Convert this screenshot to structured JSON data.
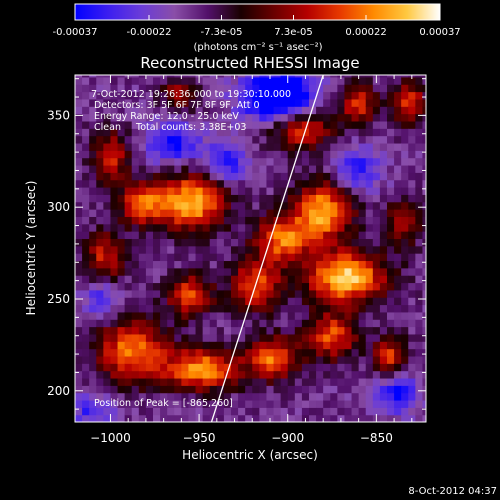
{
  "colorbar": {
    "vmin": -0.00037,
    "vmax": 0.00037,
    "tick_values": [
      -0.00037,
      -0.00022,
      -7.3e-05,
      7.3e-05,
      0.00022,
      0.00037
    ],
    "tick_labels": [
      "-0.00037",
      "-0.00022",
      "-7.3e-05",
      "7.3e-05",
      "0.00022",
      "0.00037"
    ],
    "unit_label": "(photons cm⁻² s⁻¹ asec⁻²)",
    "colormap": [
      "#0000ff",
      "#3c1ef0",
      "#6a3cd8",
      "#8a4ea8",
      "#52106a",
      "#1a0000",
      "#6a0000",
      "#b50000",
      "#e83a00",
      "#ff8a00",
      "#ffc840",
      "#ffffff"
    ]
  },
  "chart_data": {
    "type": "heatmap",
    "title": "Reconstructed RHESSI Image",
    "xlabel": "Heliocentric X (arcsec)",
    "ylabel": "Heliocentric Y (arcsec)",
    "xlim": [
      -1020,
      -822
    ],
    "ylim": [
      183,
      372
    ],
    "xticks": [
      -1000,
      -950,
      -900,
      -850
    ],
    "yticks": [
      200,
      250,
      300,
      350
    ],
    "grid": false,
    "annotations": [
      "7-Oct-2012 19:26:36.000 to 19:30:10.000",
      "Detectors: 3F 5F 6F 7F 8F 9F, Att 0",
      "Energy Range: 12.0 - 25.0 keV",
      "Clean     Total counts: 3.38E+03"
    ],
    "peak_label": "Position of Peak = [-865,260]",
    "peak": {
      "x": -865,
      "y": 260
    },
    "limb_line": [
      {
        "x": -943,
        "y": 183
      },
      {
        "x": -880,
        "y": 372
      }
    ],
    "bright_sources": [
      {
        "x": -955,
        "y": 303,
        "sx": 14,
        "sy": 11,
        "amp": 1.0
      },
      {
        "x": -983,
        "y": 302,
        "sx": 9,
        "sy": 8,
        "amp": 0.7
      },
      {
        "x": -880,
        "y": 298,
        "sx": 12,
        "sy": 11,
        "amp": 0.95
      },
      {
        "x": -903,
        "y": 283,
        "sx": 11,
        "sy": 9,
        "amp": 0.8
      },
      {
        "x": -867,
        "y": 262,
        "sx": 16,
        "sy": 10,
        "amp": 1.05
      },
      {
        "x": -918,
        "y": 258,
        "sx": 10,
        "sy": 10,
        "amp": 0.75
      },
      {
        "x": -955,
        "y": 252,
        "sx": 9,
        "sy": 8,
        "amp": 0.75
      },
      {
        "x": -988,
        "y": 222,
        "sx": 14,
        "sy": 12,
        "amp": 0.85
      },
      {
        "x": -948,
        "y": 212,
        "sx": 15,
        "sy": 8,
        "amp": 0.9
      },
      {
        "x": -908,
        "y": 218,
        "sx": 10,
        "sy": 8,
        "amp": 0.8
      },
      {
        "x": -875,
        "y": 230,
        "sx": 10,
        "sy": 9,
        "amp": 0.75
      },
      {
        "x": -842,
        "y": 218,
        "sx": 7,
        "sy": 8,
        "amp": 0.7
      },
      {
        "x": -893,
        "y": 343,
        "sx": 13,
        "sy": 8,
        "amp": 0.75
      },
      {
        "x": -860,
        "y": 356,
        "sx": 7,
        "sy": 8,
        "amp": 0.65
      },
      {
        "x": -832,
        "y": 357,
        "sx": 7,
        "sy": 8,
        "amp": 0.7
      },
      {
        "x": -1000,
        "y": 328,
        "sx": 8,
        "sy": 10,
        "amp": 0.6
      },
      {
        "x": -1003,
        "y": 273,
        "sx": 8,
        "sy": 10,
        "amp": 0.6
      },
      {
        "x": -960,
        "y": 362,
        "sx": 8,
        "sy": 6,
        "amp": 0.5
      },
      {
        "x": -835,
        "y": 292,
        "sx": 7,
        "sy": 9,
        "amp": 0.55
      }
    ],
    "negative_regions": [
      {
        "x": -905,
        "y": 360,
        "sx": 14,
        "sy": 10,
        "amp": -1.0
      },
      {
        "x": -965,
        "y": 335,
        "sx": 10,
        "sy": 8,
        "amp": -0.55
      },
      {
        "x": -935,
        "y": 325,
        "sx": 8,
        "sy": 8,
        "amp": -0.5
      },
      {
        "x": -838,
        "y": 200,
        "sx": 8,
        "sy": 8,
        "amp": -0.6
      },
      {
        "x": -860,
        "y": 320,
        "sx": 9,
        "sy": 9,
        "amp": -0.45
      },
      {
        "x": -1005,
        "y": 250,
        "sx": 7,
        "sy": 7,
        "amp": -0.45
      },
      {
        "x": -1010,
        "y": 190,
        "sx": 8,
        "sy": 7,
        "amp": -0.4
      }
    ]
  },
  "footer": {
    "date_stamp": "8-Oct-2012 04:37"
  }
}
